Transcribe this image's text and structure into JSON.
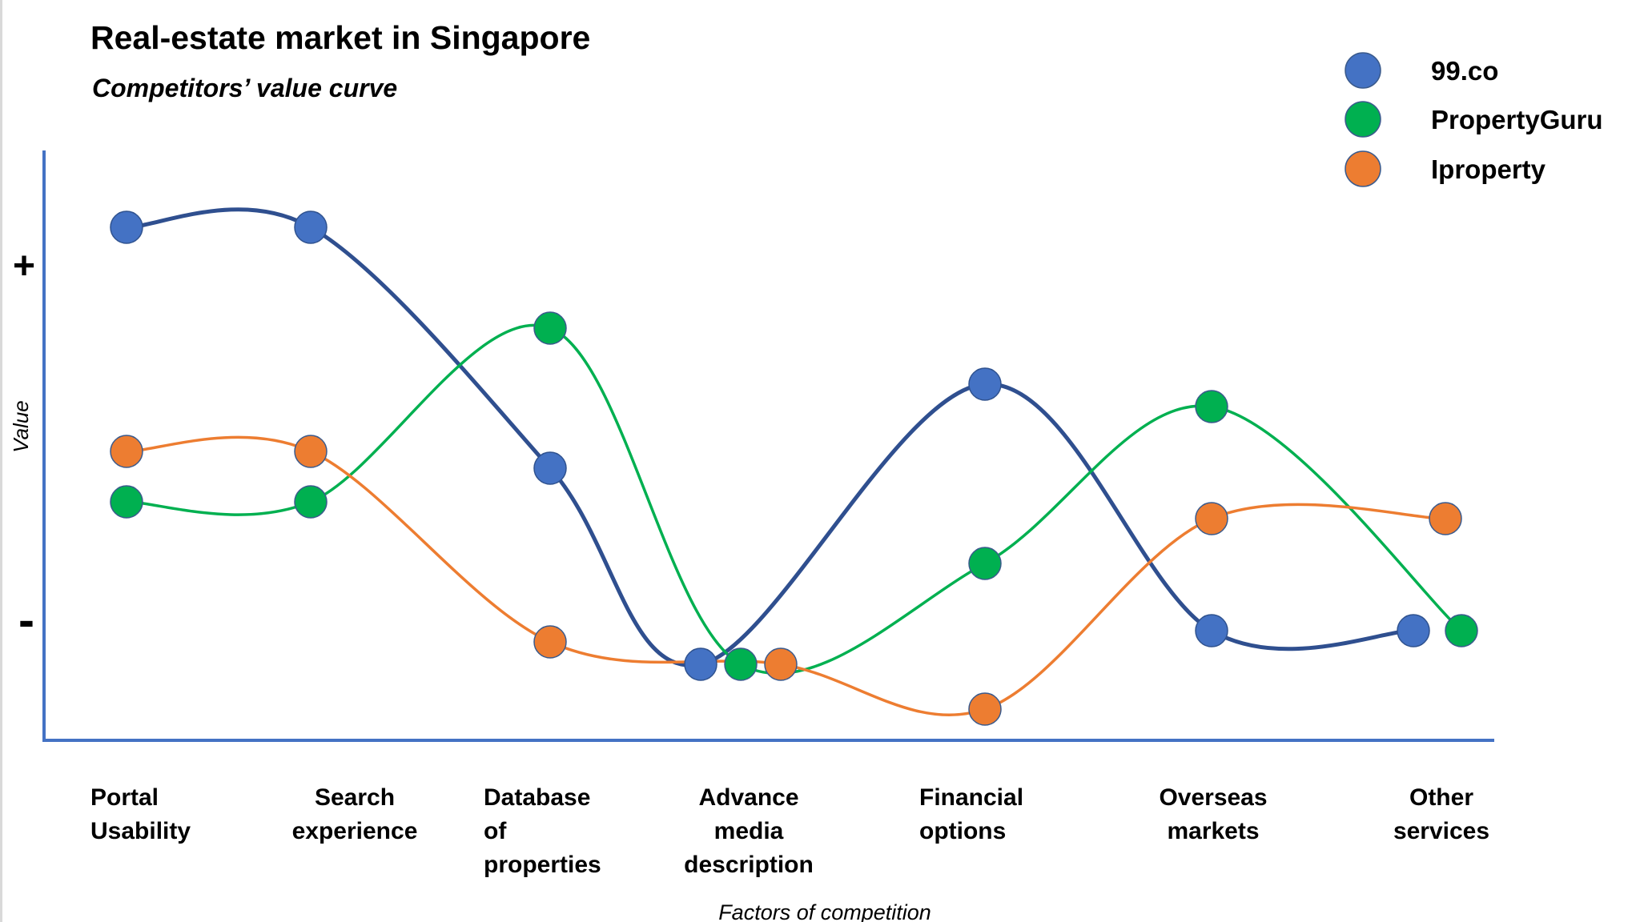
{
  "page": {
    "title": "Real-estate market in Singapore",
    "subtitle": "Competitors’ value curve"
  },
  "chart_data": {
    "type": "line",
    "title": "Real-estate market in Singapore",
    "subtitle": "Competitors’ value curve",
    "xlabel": "Factors of competition",
    "ylabel": "Value",
    "y_high_label": "+",
    "y_low_label": "-",
    "ylim": [
      0,
      10
    ],
    "categories": [
      [
        "Portal",
        "Usability"
      ],
      [
        "Search",
        "experience"
      ],
      [
        "Database",
        "of",
        "properties"
      ],
      [
        "Advance",
        "media",
        "description"
      ],
      [
        "Financial",
        "options"
      ],
      [
        "Overseas",
        "markets"
      ],
      [
        "Other",
        "services"
      ]
    ],
    "series": [
      {
        "name": "99.co",
        "color": "#4472C4",
        "line_color": "#2F4F8F",
        "values": [
          8.8,
          8.8,
          4.5,
          1.0,
          6.0,
          1.6,
          1.6
        ]
      },
      {
        "name": "PropertyGuru",
        "color": "#00B050",
        "line_color": "#00B050",
        "values": [
          3.9,
          3.9,
          7.0,
          1.0,
          2.8,
          5.6,
          1.6
        ]
      },
      {
        "name": "Iproperty",
        "color": "#ED7D31",
        "line_color": "#ED7D31",
        "values": [
          4.8,
          4.8,
          1.4,
          1.0,
          0.2,
          3.6,
          3.6
        ]
      }
    ],
    "legend_position": "top-right",
    "grid": false
  }
}
